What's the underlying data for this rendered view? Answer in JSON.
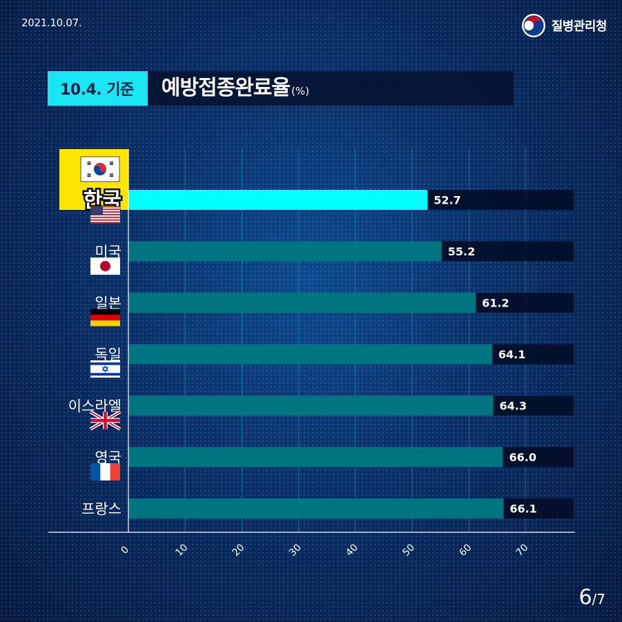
{
  "header": {
    "date": "2021.10.07.",
    "agency": "질병관리청"
  },
  "title": {
    "tag": "10.4. 기준",
    "main": "예방접종완료율",
    "unit": "(%)"
  },
  "colors": {
    "highlight_bar": "#00ffff",
    "bar": "#007581",
    "track": "#020c26",
    "highlight_label_bg": "#ffe600",
    "title_tag": "#19e5f3"
  },
  "chart_data": {
    "type": "bar",
    "orientation": "horizontal",
    "categories": [
      "한국",
      "미국",
      "일본",
      "독일",
      "이스라엘",
      "영국",
      "프랑스"
    ],
    "flags": [
      "korea-flag-icon",
      "usa-flag-icon",
      "japan-flag-icon",
      "germany-flag-icon",
      "israel-flag-icon",
      "uk-flag-icon",
      "france-flag-icon"
    ],
    "values": [
      52.7,
      55.2,
      61.2,
      64.1,
      64.3,
      66.0,
      66.1
    ],
    "value_labels": [
      "52.7",
      "55.2",
      "61.2",
      "64.1",
      "64.3",
      "66.0",
      "66.1"
    ],
    "highlight": "한국",
    "xticks": [
      "0",
      "10",
      "20",
      "30",
      "40",
      "50",
      "60",
      "70"
    ],
    "xlim": [
      0,
      80
    ],
    "grid": true
  },
  "pager": {
    "current": "6",
    "total": "/7"
  }
}
